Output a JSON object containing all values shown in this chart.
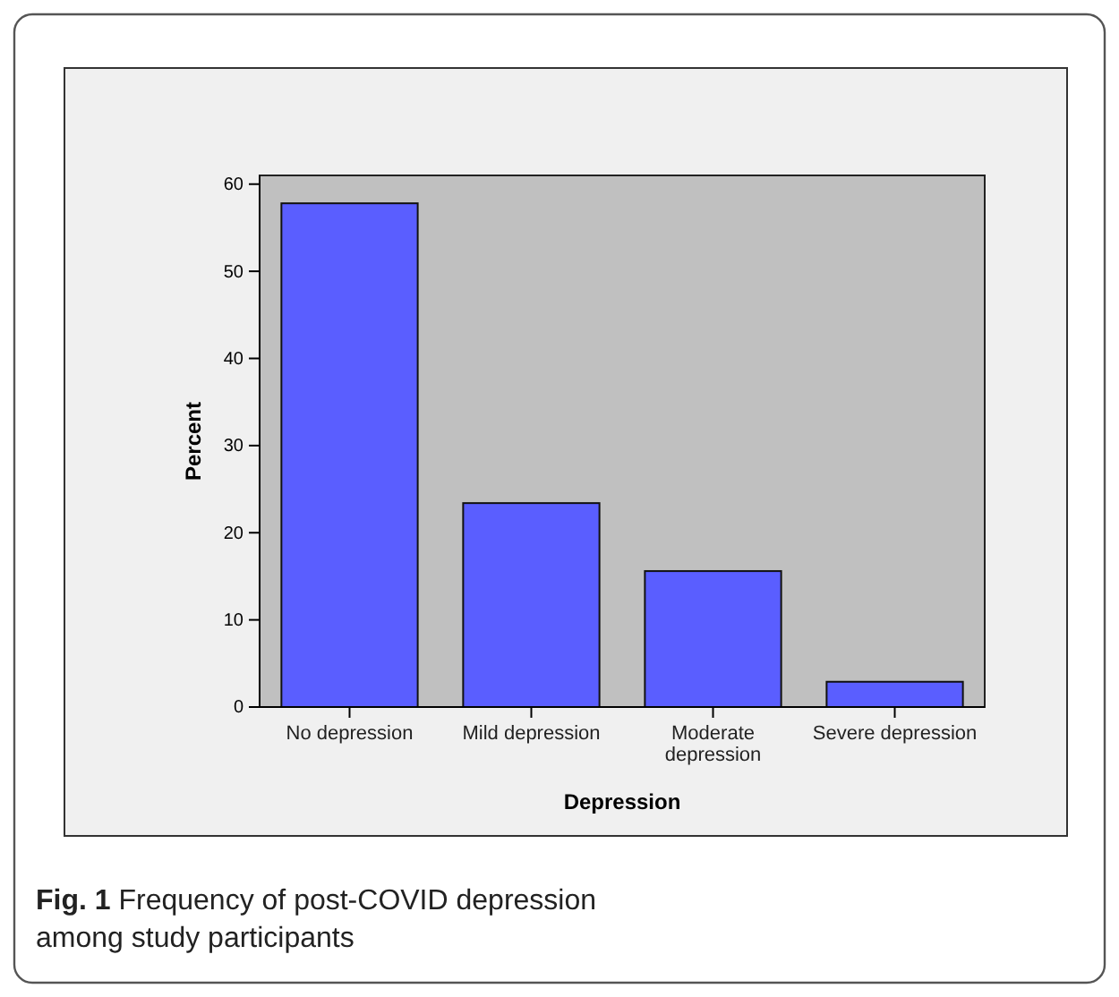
{
  "chart_data": {
    "type": "bar",
    "xlabel": "Depression",
    "ylabel": "Percent",
    "categories": [
      "No depression",
      "Mild depression",
      "Moderate depression",
      "Severe depression"
    ],
    "values": [
      57.8,
      23.4,
      15.6,
      2.9
    ],
    "color": "#5a5eff",
    "ylim": [
      0,
      61
    ],
    "yticks": [
      0,
      10,
      20,
      30,
      40,
      50,
      60
    ],
    "grid": false,
    "annotations": [
      "Fig. 1 Frequency of post-COVID depression among study participants"
    ]
  }
}
